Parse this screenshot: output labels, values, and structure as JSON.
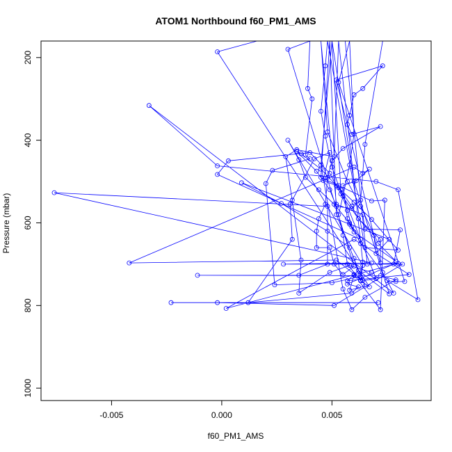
{
  "chart_data": {
    "type": "line",
    "title": "ATOM1 Northbound f60_PM1_AMS",
    "xlabel": "f60_PM1_AMS",
    "ylabel": "Pressure (mbar)",
    "xlim": [
      -0.0082,
      0.0095
    ],
    "ylim": [
      1030,
      160
    ],
    "y_reversed": true,
    "grid": false,
    "legend": "none",
    "xticks": [
      -0.005,
      0.0,
      0.005
    ],
    "xtick_labels": [
      "-0.005",
      "0.000",
      "0.005"
    ],
    "yticks": [
      200,
      400,
      600,
      800,
      1000
    ],
    "ytick_labels": [
      "200",
      "400",
      "600",
      "800",
      "1000"
    ],
    "color": "#0000ff",
    "series": [
      {
        "points": [
          [
            -0.0023,
            793
          ],
          [
            0.0071,
            793
          ],
          [
            -0.0002,
            793
          ],
          [
            0.0051,
            800
          ],
          [
            0.0082,
            700
          ],
          [
            0.0028,
            700
          ],
          [
            0.0068,
            697
          ],
          [
            -0.0076,
            527
          ],
          [
            0.0048,
            560
          ],
          [
            0.0048,
            700
          ],
          [
            0.0035,
            727
          ],
          [
            -0.0011,
            727
          ],
          [
            0.0072,
            728
          ],
          [
            0.0079,
            738
          ],
          [
            0.0065,
            780
          ],
          [
            0.0059,
            810
          ],
          [
            0.0055,
            760
          ],
          [
            0.0045,
            460
          ],
          [
            0.005,
            160
          ],
          [
            0.0056,
            160
          ],
          [
            0.0066,
            700
          ],
          [
            0.008,
            698
          ],
          [
            0.0002,
            807
          ],
          [
            0.006,
            640
          ],
          [
            0.0085,
            725
          ],
          [
            0.0057,
            740
          ],
          [
            0.006,
            725
          ],
          [
            0.0072,
            810
          ],
          [
            0.0074,
            545
          ],
          [
            0.0068,
            547
          ],
          [
            0.0045,
            490
          ],
          [
            0.0049,
            160
          ],
          [
            0.0052,
            580
          ],
          [
            0.0065,
            753
          ],
          [
            0.0058,
            763
          ],
          [
            0.006,
            727
          ],
          [
            0.0062,
            715
          ],
          [
            0.0076,
            772
          ],
          [
            0.006,
            500
          ],
          [
            0.005,
            160
          ],
          [
            0.0054,
            520
          ],
          [
            0.007,
            735
          ],
          [
            0.0064,
            740
          ],
          [
            0.0052,
            690
          ],
          [
            -0.0042,
            697
          ],
          [
            0.006,
            465
          ],
          [
            0.0064,
            480
          ],
          [
            0.0067,
            470
          ],
          [
            0.0061,
            498
          ],
          [
            0.0055,
            510
          ],
          [
            0.0057,
            590
          ],
          [
            0.0058,
            603
          ],
          [
            0.006,
            622
          ],
          [
            0.0079,
            693
          ],
          [
            0.0071,
            650
          ],
          [
            0.0063,
            560
          ],
          [
            0.0057,
            500
          ],
          [
            0.0048,
            380
          ],
          [
            0.0045,
            160
          ],
          [
            0.0052,
            555
          ],
          [
            0.0064,
            580
          ],
          [
            0.0065,
            615
          ],
          [
            0.0081,
            617
          ],
          [
            0.0078,
            700
          ],
          [
            0.0057,
            748
          ],
          [
            0.0062,
            755
          ],
          [
            0.0059,
            770
          ],
          [
            0.0012,
            793
          ],
          [
            0.0032,
            640
          ],
          [
            0.0031,
            555
          ],
          [
            0.0032,
            545
          ],
          [
            0.0042,
            445
          ],
          [
            0.0049,
            430
          ],
          [
            0.0046,
            497
          ],
          [
            0.0052,
            510
          ],
          [
            0.006,
            550
          ],
          [
            0.0068,
            592
          ],
          [
            0.008,
            666
          ],
          [
            0.0065,
            660
          ],
          [
            0.0048,
            160
          ],
          [
            0.0047,
            220
          ],
          [
            0.0045,
            330
          ],
          [
            0.0047,
            390
          ],
          [
            0.005,
            465
          ],
          [
            0.0053,
            510
          ],
          [
            0.0057,
            570
          ],
          [
            0.0059,
            610
          ],
          [
            0.0063,
            650
          ],
          [
            0.0073,
            720
          ],
          [
            0.0078,
            770
          ],
          [
            -0.0033,
            316
          ],
          [
            -0.0002,
            462
          ],
          [
            0.007,
            500
          ],
          [
            0.008,
            520
          ],
          [
            0.0089,
            786
          ],
          [
            0.0075,
            740
          ],
          [
            0.0079,
            742
          ],
          [
            0.0083,
            742
          ],
          [
            0.0053,
            260
          ],
          [
            0.0058,
            160
          ],
          [
            0.006,
            385
          ],
          [
            0.0058,
            460
          ],
          [
            0.0055,
            535
          ],
          [
            0.0053,
            580
          ],
          [
            0.0055,
            630
          ],
          [
            0.0057,
            700
          ],
          [
            0.0063,
            740
          ],
          [
            0.0067,
            755
          ],
          [
            -0.0002,
            186
          ],
          [
            0.0016,
            160
          ],
          [
            0.0073,
            160
          ],
          [
            0.0065,
            410
          ],
          [
            0.0063,
            545
          ],
          [
            0.0059,
            565
          ],
          [
            0.0052,
            560
          ],
          [
            0.0049,
            520
          ],
          [
            0.0043,
            475
          ],
          [
            0.0034,
            427
          ],
          [
            0.0036,
            433
          ],
          [
            0.0045,
            470
          ],
          [
            0.0053,
            515
          ],
          [
            0.0059,
            560
          ],
          [
            0.0062,
            590
          ],
          [
            0.0069,
            630
          ],
          [
            0.007,
            674
          ],
          [
            0.0076,
            640
          ],
          [
            0.0009,
            503
          ],
          [
            0.0027,
            553
          ],
          [
            0.0048,
            620
          ],
          [
            0.0058,
            660
          ],
          [
            0.006,
            686
          ],
          [
            0.0063,
            740
          ],
          [
            0.0064,
            703
          ],
          [
            0.003,
            400
          ],
          [
            0.0035,
            447
          ],
          [
            0.0038,
            490
          ],
          [
            0.0044,
            520
          ],
          [
            0.0051,
            555
          ],
          [
            0.0058,
            600
          ],
          [
            0.0063,
            640
          ],
          [
            -0.0002,
            483
          ],
          [
            0.0003,
            450
          ],
          [
            0.004,
            430
          ],
          [
            0.0049,
            480
          ],
          [
            0.0054,
            530
          ],
          [
            0.0062,
            590
          ],
          [
            0.0072,
            640
          ],
          [
            0.0072,
            697
          ],
          [
            0.0052,
            254
          ],
          [
            0.0073,
            220
          ],
          [
            0.0064,
            275
          ],
          [
            0.006,
            290
          ],
          [
            0.0058,
            340
          ],
          [
            0.0057,
            362
          ],
          [
            0.0059,
            386
          ],
          [
            0.0072,
            367
          ],
          [
            0.0055,
            420
          ],
          [
            0.005,
            450
          ],
          [
            0.0048,
            490
          ],
          [
            0.0047,
            555
          ],
          [
            0.0044,
            590
          ],
          [
            0.0043,
            620
          ],
          [
            0.0043,
            660
          ],
          [
            0.0049,
            660
          ],
          [
            0.0051,
            700
          ],
          [
            0.0055,
            725
          ],
          [
            0.006,
            705
          ],
          [
            0.003,
            180
          ],
          [
            0.004,
            160
          ],
          [
            0.0039,
            275
          ],
          [
            0.0041,
            300
          ],
          [
            0.0038,
            436
          ],
          [
            0.004,
            445
          ],
          [
            0.0023,
            473
          ],
          [
            0.002,
            505
          ],
          [
            0.0024,
            750
          ],
          [
            0.005,
            745
          ],
          [
            0.0063,
            730
          ],
          [
            0.0064,
            695
          ],
          [
            0.0053,
            160
          ],
          [
            0.0051,
            440
          ],
          [
            0.0034,
            423
          ],
          [
            0.0029,
            440
          ],
          [
            0.0036,
            690
          ],
          [
            0.0035,
            770
          ],
          [
            0.0049,
            720
          ],
          [
            0.0058,
            703
          ],
          [
            0.0068,
            720
          ]
        ]
      }
    ]
  }
}
